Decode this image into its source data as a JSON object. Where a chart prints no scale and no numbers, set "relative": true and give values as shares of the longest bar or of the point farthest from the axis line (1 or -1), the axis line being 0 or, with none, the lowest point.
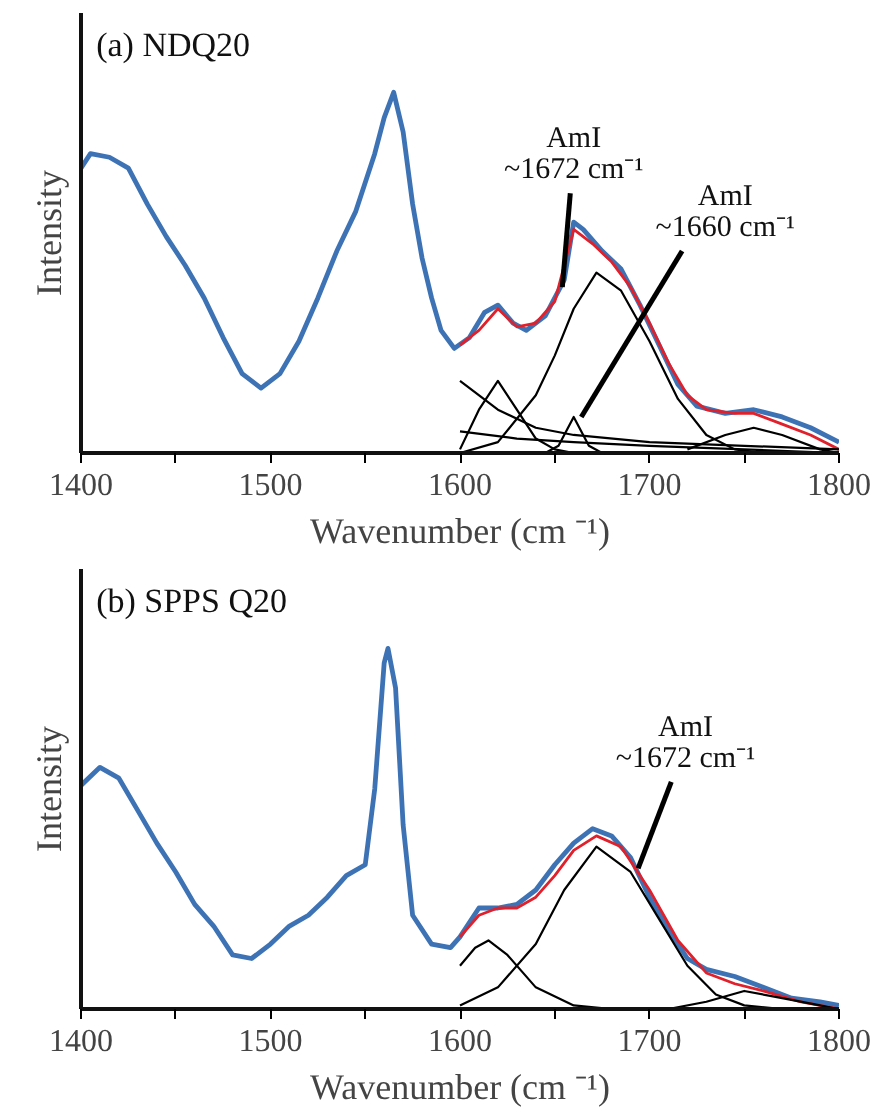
{
  "chart_data": [
    {
      "type": "line",
      "title": "(a) NDQ20",
      "xlabel": "Wavenumber (cm ⁻¹)",
      "ylabel": "Intensity",
      "relative": true,
      "marker": "none",
      "line_style": "solid",
      "grid": false,
      "xlim": [
        1400,
        1800
      ],
      "xticks": [
        1400,
        {
          "value": 1450,
          "label": null
        },
        1500,
        {
          "value": 1550,
          "label": null
        },
        1600,
        {
          "value": 1650,
          "label": null
        },
        1700,
        {
          "value": 1750,
          "label": null
        },
        1800
      ],
      "series": [
        {
          "color": "#3d73b5",
          "x": [
            1400,
            1405,
            1415,
            1425,
            1435,
            1445,
            1455,
            1465,
            1475,
            1485,
            1495,
            1505,
            1515,
            1525,
            1535,
            1545,
            1555,
            1560,
            1565,
            1570,
            1575,
            1580,
            1585,
            1590,
            1597,
            1605,
            1613,
            1620,
            1628,
            1635,
            1645,
            1655,
            1660,
            1665,
            1675,
            1685,
            1695,
            1705,
            1715,
            1725,
            1740,
            1755,
            1770,
            1785,
            1800
          ],
          "values": [
            0.79,
            0.83,
            0.82,
            0.79,
            0.69,
            0.6,
            0.52,
            0.43,
            0.32,
            0.22,
            0.18,
            0.22,
            0.31,
            0.43,
            0.56,
            0.67,
            0.83,
            0.93,
            1.0,
            0.89,
            0.69,
            0.54,
            0.43,
            0.34,
            0.29,
            0.32,
            0.39,
            0.41,
            0.36,
            0.34,
            0.38,
            0.48,
            0.64,
            0.62,
            0.56,
            0.51,
            0.41,
            0.3,
            0.19,
            0.13,
            0.11,
            0.12,
            0.1,
            0.07,
            0.03
          ]
        },
        {
          "color": "#e0202a",
          "x": [
            1600,
            1610,
            1620,
            1630,
            1640,
            1650,
            1660,
            1670,
            1680,
            1690,
            1700,
            1710,
            1720,
            1730,
            1745,
            1755,
            1770,
            1785,
            1800
          ],
          "values": [
            0.3,
            0.34,
            0.4,
            0.35,
            0.36,
            0.42,
            0.62,
            0.58,
            0.53,
            0.46,
            0.36,
            0.25,
            0.16,
            0.12,
            0.11,
            0.11,
            0.08,
            0.05,
            0.01
          ]
        },
        {
          "color": "#000000",
          "x": [
            1600,
            1610,
            1620,
            1630,
            1640,
            1650,
            1660
          ],
          "values": [
            0.01,
            0.12,
            0.2,
            0.12,
            0.04,
            0.01,
            0
          ]
        },
        {
          "color": "#000000",
          "x": [
            1600,
            1620,
            1640,
            1650,
            1660,
            1672,
            1685,
            1700,
            1715,
            1730,
            1745,
            1760
          ],
          "values": [
            0,
            0.03,
            0.16,
            0.27,
            0.4,
            0.5,
            0.45,
            0.31,
            0.15,
            0.05,
            0.01,
            0
          ]
        },
        {
          "color": "#000000",
          "x": [
            1645,
            1652,
            1660,
            1668,
            1675
          ],
          "values": [
            0,
            0.02,
            0.1,
            0.02,
            0
          ]
        },
        {
          "color": "#000000",
          "x": [
            1600,
            1620,
            1640,
            1660,
            1700,
            1750,
            1800
          ],
          "values": [
            0.2,
            0.12,
            0.07,
            0.05,
            0.03,
            0.02,
            0.01
          ]
        },
        {
          "color": "#000000",
          "x": [
            1600,
            1630,
            1660,
            1700,
            1750,
            1800
          ],
          "values": [
            0.06,
            0.04,
            0.03,
            0.02,
            0.01,
            0
          ]
        },
        {
          "color": "#000000",
          "x": [
            1720,
            1740,
            1755,
            1770,
            1790,
            1800
          ],
          "values": [
            0.01,
            0.05,
            0.07,
            0.05,
            0.01,
            0
          ]
        }
      ],
      "annotations": [
        {
          "text": "AmI\n~1672 cm⁻¹",
          "x": 1654,
          "y": 0.46
        },
        {
          "text": "AmI\n~1660 cm⁻¹",
          "x": 1664,
          "y": 0.1
        }
      ]
    },
    {
      "type": "line",
      "title": "(b) SPPS Q20",
      "xlabel": "Wavenumber (cm ⁻¹)",
      "ylabel": "Intensity",
      "relative": true,
      "marker": "none",
      "line_style": "solid",
      "grid": false,
      "xlim": [
        1400,
        1800
      ],
      "xticks": [
        1400,
        {
          "value": 1450,
          "label": null
        },
        1500,
        {
          "value": 1550,
          "label": null
        },
        1600,
        {
          "value": 1650,
          "label": null
        },
        1700,
        {
          "value": 1750,
          "label": null
        },
        1800
      ],
      "series": [
        {
          "color": "#3d73b5",
          "x": [
            1400,
            1410,
            1420,
            1430,
            1440,
            1450,
            1460,
            1470,
            1480,
            1490,
            1500,
            1510,
            1520,
            1530,
            1540,
            1550,
            1555,
            1560,
            1562,
            1566,
            1570,
            1575,
            1585,
            1595,
            1600,
            1610,
            1620,
            1630,
            1640,
            1650,
            1660,
            1670,
            1680,
            1690,
            1700,
            1710,
            1720,
            1730,
            1745,
            1760,
            1775,
            1790,
            1800
          ],
          "values": [
            0.62,
            0.67,
            0.64,
            0.55,
            0.46,
            0.38,
            0.29,
            0.23,
            0.15,
            0.14,
            0.18,
            0.23,
            0.26,
            0.31,
            0.37,
            0.4,
            0.61,
            0.96,
            1.0,
            0.89,
            0.51,
            0.26,
            0.18,
            0.17,
            0.2,
            0.28,
            0.28,
            0.29,
            0.33,
            0.4,
            0.46,
            0.5,
            0.48,
            0.42,
            0.31,
            0.22,
            0.14,
            0.11,
            0.09,
            0.06,
            0.03,
            0.02,
            0.01
          ]
        },
        {
          "color": "#e0202a",
          "x": [
            1600,
            1610,
            1620,
            1630,
            1640,
            1650,
            1660,
            1672,
            1685,
            1700,
            1715,
            1730,
            1745,
            1760,
            1780,
            1800
          ],
          "values": [
            0.2,
            0.26,
            0.28,
            0.28,
            0.31,
            0.37,
            0.44,
            0.48,
            0.45,
            0.33,
            0.19,
            0.1,
            0.07,
            0.05,
            0.02,
            0
          ]
        },
        {
          "color": "#000000",
          "x": [
            1600,
            1608,
            1615,
            1625,
            1640,
            1660,
            1680
          ],
          "values": [
            0.12,
            0.17,
            0.19,
            0.15,
            0.06,
            0.01,
            0
          ]
        },
        {
          "color": "#000000",
          "x": [
            1600,
            1620,
            1640,
            1655,
            1672,
            1690,
            1705,
            1720,
            1735,
            1750,
            1770
          ],
          "values": [
            0.01,
            0.06,
            0.18,
            0.33,
            0.45,
            0.38,
            0.25,
            0.12,
            0.04,
            0.01,
            0
          ]
        },
        {
          "color": "#000000",
          "x": [
            1710,
            1730,
            1750,
            1770,
            1790,
            1800
          ],
          "values": [
            0,
            0.02,
            0.05,
            0.03,
            0.01,
            0
          ]
        }
      ],
      "annotations": [
        {
          "text": "AmI\n~1672 cm⁻¹",
          "x": 1694,
          "y": 0.39
        }
      ]
    }
  ]
}
